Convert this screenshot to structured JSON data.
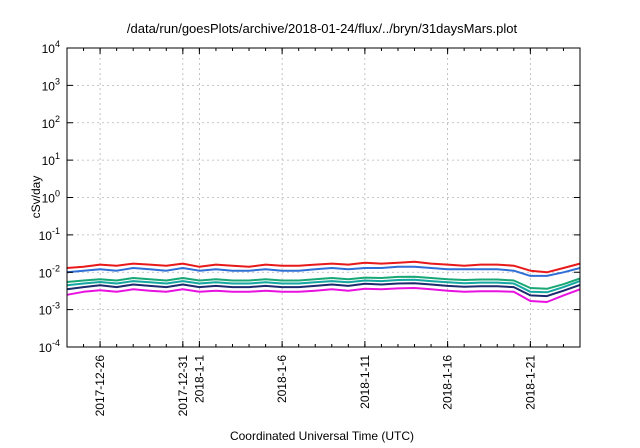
{
  "chart_data": {
    "type": "line",
    "title": "/data/run/goesPlots/archive/2018-01-24/flux/../bryn/31daysMars.plot",
    "xlabel": "Coordinated Universal Time (UTC)",
    "ylabel": "cSv/day",
    "yscale": "log",
    "ylim": [
      0.0001,
      10000
    ],
    "xlim": [
      "2017-12-24",
      "2018-01-24"
    ],
    "grid": true,
    "legend": "none",
    "y_ticks": [
      {
        "value": 0.0001,
        "base": "10",
        "exp": "-4"
      },
      {
        "value": 0.001,
        "base": "10",
        "exp": "-3"
      },
      {
        "value": 0.01,
        "base": "10",
        "exp": "-2"
      },
      {
        "value": 0.1,
        "base": "10",
        "exp": "-1"
      },
      {
        "value": 1,
        "base": "10",
        "exp": "0"
      },
      {
        "value": 10,
        "base": "10",
        "exp": "1"
      },
      {
        "value": 100,
        "base": "10",
        "exp": "2"
      },
      {
        "value": 1000,
        "base": "10",
        "exp": "3"
      },
      {
        "value": 10000,
        "base": "10",
        "exp": "4"
      }
    ],
    "x_ticks": [
      {
        "date": "2017-12-26",
        "label": "2017-12-26"
      },
      {
        "date": "2017-12-31",
        "label": "2017-12-31"
      },
      {
        "date": "2018-01-01",
        "label": "2018-1-1"
      },
      {
        "date": "2018-01-06",
        "label": "2018-1-6"
      },
      {
        "date": "2018-01-11",
        "label": "2018-1-11"
      },
      {
        "date": "2018-01-16",
        "label": "2018-1-16"
      },
      {
        "date": "2018-01-21",
        "label": "2018-1-21"
      }
    ],
    "x_dates": [
      "2017-12-24",
      "2017-12-25",
      "2017-12-26",
      "2017-12-27",
      "2017-12-28",
      "2017-12-29",
      "2017-12-30",
      "2017-12-31",
      "2018-01-01",
      "2018-01-02",
      "2018-01-03",
      "2018-01-04",
      "2018-01-05",
      "2018-01-06",
      "2018-01-07",
      "2018-01-08",
      "2018-01-09",
      "2018-01-10",
      "2018-01-11",
      "2018-01-12",
      "2018-01-13",
      "2018-01-14",
      "2018-01-15",
      "2018-01-16",
      "2018-01-17",
      "2018-01-18",
      "2018-01-19",
      "2018-01-20",
      "2018-01-21",
      "2018-01-22",
      "2018-01-23",
      "2018-01-24"
    ],
    "series": [
      {
        "color": "#e8191a",
        "values": [
          0.013,
          0.014,
          0.016,
          0.015,
          0.017,
          0.016,
          0.015,
          0.017,
          0.014,
          0.016,
          0.015,
          0.014,
          0.016,
          0.015,
          0.015,
          0.016,
          0.017,
          0.016,
          0.018,
          0.017,
          0.018,
          0.019,
          0.017,
          0.016,
          0.015,
          0.016,
          0.016,
          0.015,
          0.011,
          0.01,
          0.013,
          0.017
        ]
      },
      {
        "color": "#2f6fd6",
        "values": [
          0.01,
          0.011,
          0.012,
          0.011,
          0.013,
          0.012,
          0.011,
          0.013,
          0.011,
          0.012,
          0.011,
          0.011,
          0.012,
          0.011,
          0.011,
          0.012,
          0.013,
          0.012,
          0.013,
          0.013,
          0.014,
          0.014,
          0.013,
          0.012,
          0.012,
          0.012,
          0.012,
          0.011,
          0.008,
          0.008,
          0.01,
          0.013
        ]
      },
      {
        "color": "#19a875",
        "values": [
          0.0055,
          0.006,
          0.0065,
          0.006,
          0.007,
          0.0065,
          0.006,
          0.007,
          0.006,
          0.0065,
          0.006,
          0.006,
          0.0065,
          0.006,
          0.006,
          0.0065,
          0.007,
          0.0065,
          0.0072,
          0.007,
          0.0075,
          0.0076,
          0.007,
          0.0065,
          0.0062,
          0.0064,
          0.0064,
          0.006,
          0.0038,
          0.0036,
          0.0048,
          0.0068
        ]
      },
      {
        "color": "#14a6a0",
        "values": [
          0.0045,
          0.005,
          0.0055,
          0.005,
          0.0058,
          0.0054,
          0.005,
          0.0058,
          0.005,
          0.0054,
          0.005,
          0.005,
          0.0054,
          0.005,
          0.005,
          0.0054,
          0.0058,
          0.0054,
          0.006,
          0.0058,
          0.0062,
          0.0063,
          0.0058,
          0.0054,
          0.0051,
          0.0053,
          0.0053,
          0.005,
          0.003,
          0.0029,
          0.004,
          0.0058
        ]
      },
      {
        "color": "#1c2b6e",
        "values": [
          0.0035,
          0.004,
          0.0045,
          0.004,
          0.0047,
          0.0043,
          0.004,
          0.0047,
          0.004,
          0.0043,
          0.004,
          0.004,
          0.0043,
          0.004,
          0.004,
          0.0043,
          0.0047,
          0.0043,
          0.0049,
          0.0047,
          0.005,
          0.0051,
          0.0047,
          0.0043,
          0.0041,
          0.0042,
          0.0042,
          0.004,
          0.0024,
          0.0023,
          0.0032,
          0.0046
        ]
      },
      {
        "color": "#e811e0",
        "values": [
          0.0025,
          0.003,
          0.0033,
          0.003,
          0.0035,
          0.0032,
          0.003,
          0.0035,
          0.003,
          0.0032,
          0.003,
          0.003,
          0.0032,
          0.003,
          0.003,
          0.0032,
          0.0035,
          0.0032,
          0.0036,
          0.0035,
          0.0037,
          0.0038,
          0.0035,
          0.0032,
          0.003,
          0.0031,
          0.0031,
          0.003,
          0.0017,
          0.0016,
          0.0024,
          0.0035
        ]
      }
    ]
  }
}
